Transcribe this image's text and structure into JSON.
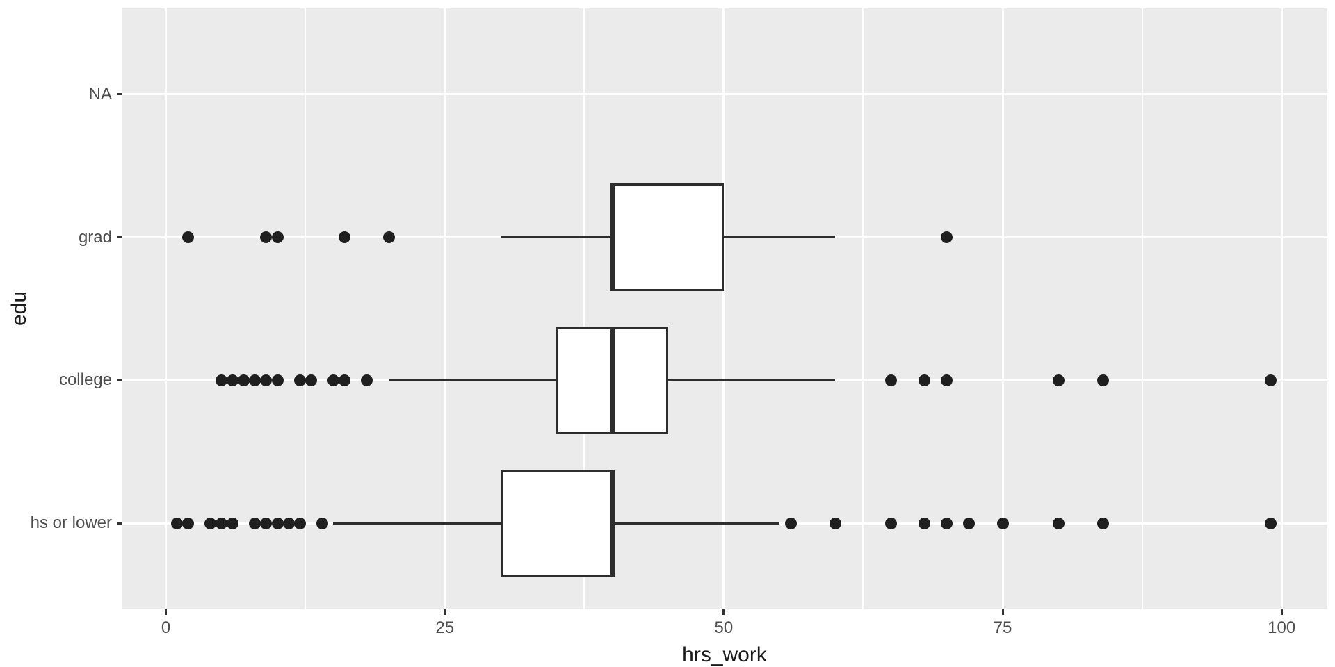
{
  "chart_data": {
    "type": "boxplot",
    "orientation": "horizontal",
    "title": "",
    "xlabel": "hrs_work",
    "ylabel": "edu",
    "xlim": [
      -3.9,
      104.1
    ],
    "x_major_ticks": [
      0,
      25,
      50,
      75,
      100
    ],
    "x_tick_labels": [
      "0",
      "25",
      "50",
      "75",
      "100"
    ],
    "x_minor_gridlines": [
      12.5,
      37.5,
      62.5,
      87.5
    ],
    "grid": "white major+minor vertical gridlines, white major horizontal gridlines on grey panel",
    "legend": "none",
    "categories_top_to_bottom": [
      "NA",
      "grad",
      "college",
      "hs or lower"
    ],
    "series": [
      {
        "category": "NA",
        "empty": true,
        "outliers": []
      },
      {
        "category": "grad",
        "empty": false,
        "whisker_low": 30,
        "q1": 40,
        "median": 40,
        "q3": 50,
        "whisker_high": 60,
        "outliers": [
          2,
          9,
          10,
          16,
          20,
          70
        ]
      },
      {
        "category": "college",
        "empty": false,
        "whisker_low": 20,
        "q1": 35,
        "median": 40,
        "q3": 45,
        "whisker_high": 60,
        "outliers": [
          5,
          6,
          7,
          8,
          9,
          10,
          12,
          13,
          15,
          16,
          18,
          65,
          68,
          70,
          80,
          84,
          99
        ]
      },
      {
        "category": "hs or lower",
        "empty": false,
        "whisker_low": 15,
        "q1": 30,
        "median": 40,
        "q3": 40,
        "whisker_high": 55,
        "outliers": [
          1,
          2,
          4,
          5,
          6,
          8,
          9,
          10,
          11,
          12,
          14,
          56,
          60,
          65,
          68,
          70,
          72,
          75,
          80,
          84,
          99
        ]
      }
    ]
  },
  "colors": {
    "panel_background": "#EBEBEB",
    "gridline": "#FFFFFF",
    "box_border": "#2D2D2D",
    "box_fill": "#FFFFFF",
    "median_line": "#2D2D2D",
    "outlier_point": "#1F1F1F",
    "tick_mark": "#333333",
    "axis_text": "#4D4D4D",
    "axis_title": "#1A1A1A"
  }
}
